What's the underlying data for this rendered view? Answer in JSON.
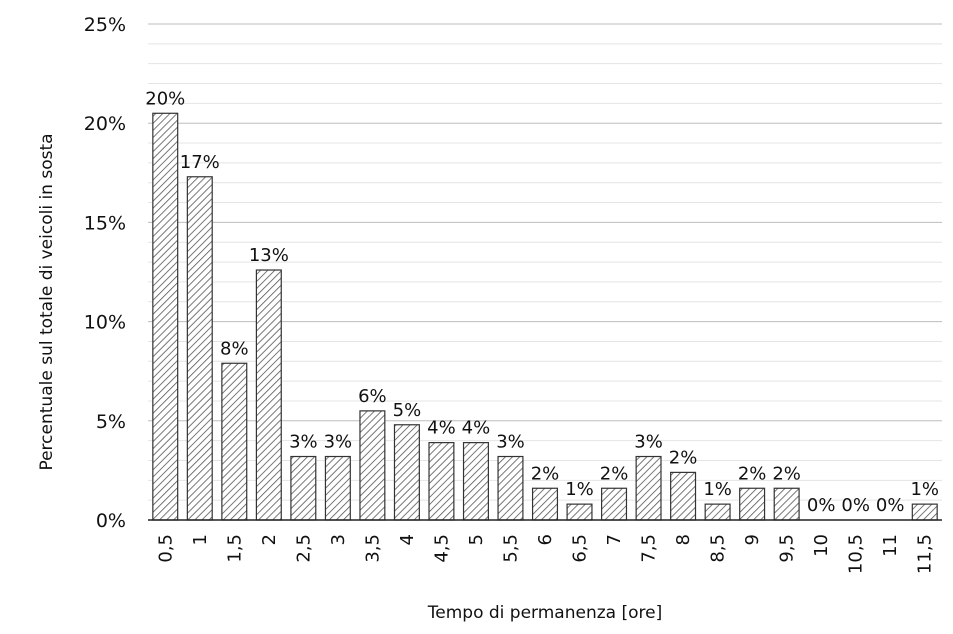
{
  "chart_data": {
    "type": "bar",
    "title": "",
    "xlabel": "Tempo di permanenza [ore]",
    "ylabel": "Percentuale sul totale di veicoli in sosta",
    "categories": [
      "0,5",
      "1",
      "1,5",
      "2",
      "2,5",
      "3",
      "3,5",
      "4",
      "4,5",
      "5",
      "5,5",
      "6",
      "6,5",
      "7",
      "7,5",
      "8",
      "8,5",
      "9",
      "9,5",
      "10",
      "10,5",
      "11",
      "11,5"
    ],
    "values": [
      20.5,
      17.3,
      7.9,
      12.6,
      3.2,
      3.2,
      5.5,
      4.8,
      3.9,
      3.9,
      3.2,
      1.6,
      0.8,
      1.6,
      3.2,
      2.4,
      0.8,
      1.6,
      1.6,
      0,
      0,
      0,
      0.8
    ],
    "data_labels": [
      "20%",
      "17%",
      "8%",
      "13%",
      "3%",
      "3%",
      "6%",
      "5%",
      "4%",
      "4%",
      "3%",
      "2%",
      "1%",
      "2%",
      "3%",
      "2%",
      "1%",
      "2%",
      "2%",
      "0%",
      "0%",
      "0%",
      "1%"
    ],
    "ylim": [
      0,
      25
    ],
    "yticks": [
      0,
      5,
      10,
      15,
      20,
      25
    ],
    "ytick_labels": [
      "0%",
      "5%",
      "10%",
      "15%",
      "20%",
      "25%"
    ],
    "grid": true,
    "minor_grid": true,
    "legend": "none",
    "bar_fill": "hatched",
    "bar_color": "#444444"
  }
}
